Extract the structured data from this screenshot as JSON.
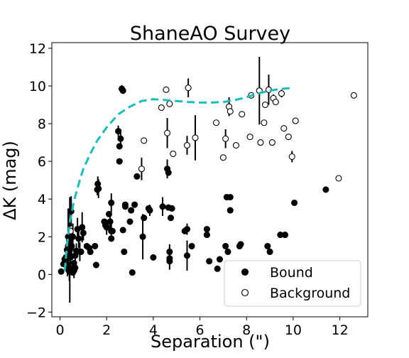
{
  "chart_data": {
    "type": "scatter",
    "title": "ShaneAO Survey",
    "xlabel": "Separation (\")",
    "ylabel": "ΔK (mag)",
    "xlim": [
      -0.35,
      13.2
    ],
    "ylim": [
      -2.25,
      12.3
    ],
    "xticks": [
      0,
      2,
      4,
      6,
      8,
      10,
      12
    ],
    "yticks": [
      -2,
      0,
      2,
      4,
      6,
      8,
      10,
      12
    ],
    "grid": false,
    "legend_position": "bottom-right",
    "legend": [
      {
        "label": "Bound",
        "marker": "filled-circle"
      },
      {
        "label": "Background",
        "marker": "open-circle"
      }
    ],
    "colors": {
      "points": "#000000",
      "curve": "#17bebb"
    },
    "curve": {
      "name": "",
      "style": "dashed",
      "x": [
        0.2,
        0.3,
        0.4,
        0.6,
        0.8,
        1.0,
        1.3,
        1.6,
        2.0,
        2.5,
        3.0,
        3.5,
        4.0,
        4.5,
        5.0,
        5.5,
        6.0,
        6.5,
        7.0,
        7.5,
        8.0,
        8.5,
        9.0,
        9.5,
        10.0
      ],
      "y": [
        0.2,
        1.5,
        2.6,
        3.9,
        4.8,
        5.6,
        6.4,
        7.1,
        7.8,
        8.5,
        8.9,
        9.2,
        9.3,
        9.25,
        9.2,
        9.15,
        9.12,
        9.12,
        9.15,
        9.25,
        9.4,
        9.6,
        9.75,
        9.85,
        9.9
      ]
    },
    "series": [
      {
        "name": "Bound",
        "marker": "filled",
        "points": [
          [
            0.05,
            0.15,
            0
          ],
          [
            0.15,
            0.55,
            0
          ],
          [
            0.2,
            0.8,
            0
          ],
          [
            0.25,
            0.9,
            0.4
          ],
          [
            0.3,
            1.3,
            0.6
          ],
          [
            0.32,
            0.3,
            0.4
          ],
          [
            0.35,
            1.5,
            1.2
          ],
          [
            0.35,
            2.0,
            1.5
          ],
          [
            0.4,
            1.8,
            1.0
          ],
          [
            0.4,
            0.15,
            0.5
          ],
          [
            0.42,
            1.3,
            2.8
          ],
          [
            0.45,
            0.9,
            0.6
          ],
          [
            0.48,
            3.35,
            0.8
          ],
          [
            0.5,
            1.5,
            0.5
          ],
          [
            0.5,
            0.3,
            0
          ],
          [
            0.55,
            0.1,
            0
          ],
          [
            0.55,
            2.0,
            0.7
          ],
          [
            0.6,
            0.6,
            0
          ],
          [
            0.6,
            0.2,
            0.4
          ],
          [
            0.65,
            1.0,
            0.3
          ],
          [
            0.65,
            0.35,
            0
          ],
          [
            0.7,
            1.25,
            0.4
          ],
          [
            0.75,
            2.4,
            0.6
          ],
          [
            0.8,
            1.9,
            0.5
          ],
          [
            0.85,
            1.2,
            0.5
          ],
          [
            0.9,
            1.2,
            0
          ],
          [
            0.95,
            2.5,
            0.8
          ],
          [
            1.0,
            2.2,
            0.4
          ],
          [
            1.15,
            1.5,
            0
          ],
          [
            1.25,
            1.4,
            0
          ],
          [
            1.3,
            1.2,
            0
          ],
          [
            1.5,
            1.5,
            0
          ],
          [
            1.55,
            0.5,
            0
          ],
          [
            1.6,
            4.5,
            0.3
          ],
          [
            1.62,
            4.8,
            0.4
          ],
          [
            1.65,
            4.55,
            0.5
          ],
          [
            1.9,
            2.8,
            0
          ],
          [
            1.95,
            2.6,
            0
          ],
          [
            2.0,
            2.5,
            0.4
          ],
          [
            2.1,
            3.2,
            0
          ],
          [
            2.15,
            2.8,
            0.4
          ],
          [
            2.2,
            1.9,
            0
          ],
          [
            2.2,
            2.3,
            0.5
          ],
          [
            2.2,
            3.8,
            0.5
          ],
          [
            2.25,
            2.3,
            0
          ],
          [
            2.5,
            7.6,
            0.3
          ],
          [
            2.55,
            6.8,
            0
          ],
          [
            2.55,
            6.0,
            0
          ],
          [
            2.6,
            7.2,
            0.5
          ],
          [
            2.65,
            9.85,
            0.2
          ],
          [
            2.7,
            9.75,
            0
          ],
          [
            2.7,
            2.35,
            0
          ],
          [
            2.75,
            1.2,
            0
          ],
          [
            2.8,
            3.7,
            0
          ],
          [
            2.8,
            3.6,
            0
          ],
          [
            3.0,
            2.8,
            0
          ],
          [
            3.05,
            3.4,
            0
          ],
          [
            3.1,
            0.1,
            0
          ],
          [
            3.2,
            3.7,
            0
          ],
          [
            3.3,
            5.2,
            0
          ],
          [
            3.55,
            2.0,
            1.2
          ],
          [
            3.6,
            3.0,
            0
          ],
          [
            3.8,
            3.5,
            0
          ],
          [
            3.85,
            3.4,
            0.3
          ],
          [
            4.0,
            0.9,
            0
          ],
          [
            4.4,
            3.6,
            0.5
          ],
          [
            4.6,
            5.6,
            0.5
          ],
          [
            4.65,
            3.55,
            0
          ],
          [
            4.65,
            5.4,
            0
          ],
          [
            4.7,
            1.2,
            0.4
          ],
          [
            4.7,
            0.85,
            0.6
          ],
          [
            4.7,
            0.7,
            0
          ],
          [
            4.75,
            3.0,
            0
          ],
          [
            4.8,
            3.5,
            0
          ],
          [
            5.35,
            2.3,
            0
          ],
          [
            5.45,
            2.4,
            0.3
          ],
          [
            5.45,
            1.0,
            0.8
          ],
          [
            5.65,
            1.5,
            0
          ],
          [
            6.3,
            2.4,
            0
          ],
          [
            6.3,
            2.1,
            0
          ],
          [
            6.4,
            0.7,
            0
          ],
          [
            6.75,
            0.3,
            0
          ],
          [
            6.85,
            0.8,
            0
          ],
          [
            7.1,
            1.5,
            0
          ],
          [
            7.15,
            4.1,
            0
          ],
          [
            7.2,
            1.2,
            0
          ],
          [
            7.3,
            4.1,
            0
          ],
          [
            7.3,
            3.4,
            0
          ],
          [
            7.7,
            1.5,
            0
          ],
          [
            7.75,
            1.6,
            0
          ],
          [
            8.9,
            1.5,
            0
          ],
          [
            9.0,
            1.2,
            0
          ],
          [
            9.45,
            2.1,
            0
          ],
          [
            9.65,
            2.1,
            0
          ],
          [
            10.05,
            3.8,
            0
          ],
          [
            11.4,
            4.5,
            0
          ]
        ]
      },
      {
        "name": "Background",
        "marker": "open",
        "points": [
          [
            0.45,
            2.3,
            0
          ],
          [
            3.5,
            5.6,
            0.6
          ],
          [
            3.6,
            7.1,
            0
          ],
          [
            4.35,
            8.85,
            0
          ],
          [
            4.55,
            9.8,
            0
          ],
          [
            4.6,
            7.5,
            0.8
          ],
          [
            4.7,
            9.05,
            0
          ],
          [
            4.85,
            6.4,
            0
          ],
          [
            5.45,
            6.85,
            0.5
          ],
          [
            5.5,
            9.9,
            0.5
          ],
          [
            5.8,
            7.25,
            1.2
          ],
          [
            6.7,
            8.05,
            0
          ],
          [
            7.0,
            6.2,
            0
          ],
          [
            7.1,
            7.2,
            0.5
          ],
          [
            7.25,
            8.9,
            0.5
          ],
          [
            7.3,
            8.65,
            0
          ],
          [
            7.55,
            6.85,
            0
          ],
          [
            7.8,
            8.5,
            0
          ],
          [
            8.15,
            7.3,
            0
          ],
          [
            8.2,
            9.5,
            0
          ],
          [
            8.55,
            9.75,
            1.8
          ],
          [
            8.6,
            7.0,
            0
          ],
          [
            8.75,
            8.05,
            0
          ],
          [
            8.8,
            9.0,
            0
          ],
          [
            8.95,
            9.8,
            0.8
          ],
          [
            9.1,
            7.0,
            0
          ],
          [
            9.15,
            9.35,
            0.2
          ],
          [
            9.25,
            9.15,
            0
          ],
          [
            9.5,
            9.6,
            0.2
          ],
          [
            9.6,
            7.75,
            0
          ],
          [
            9.8,
            7.3,
            0
          ],
          [
            9.95,
            6.25,
            0.3
          ],
          [
            10.1,
            8.15,
            0
          ],
          [
            11.95,
            5.1,
            0
          ],
          [
            12.6,
            9.5,
            0
          ]
        ]
      }
    ]
  }
}
